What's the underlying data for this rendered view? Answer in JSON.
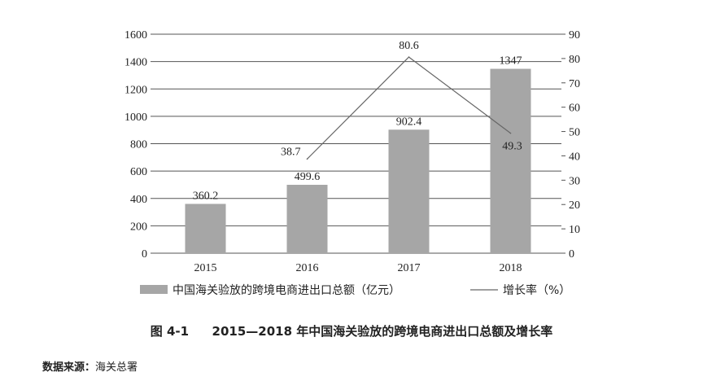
{
  "chart_data": {
    "type": "bar",
    "categories": [
      "2015",
      "2016",
      "2017",
      "2018"
    ],
    "series": [
      {
        "name": "中国海关验放的跨境电商进出口总额（亿元）",
        "type": "bar",
        "axis": "left",
        "values": [
          360.2,
          499.6,
          902.4,
          1347
        ],
        "labels": [
          "360.2",
          "499.6",
          "902.4",
          "1347"
        ],
        "color": "#a6a6a6"
      },
      {
        "name": "增长率（%）",
        "type": "line",
        "axis": "right",
        "values": [
          null,
          38.7,
          80.6,
          49.3
        ],
        "labels": [
          "",
          "38.7",
          "80.6",
          "49.3"
        ],
        "color": "#666666"
      }
    ],
    "y_left": {
      "min": 0,
      "max": 1600,
      "ticks": [
        "0",
        "200",
        "400",
        "600",
        "800",
        "1000",
        "1200",
        "1400",
        "1600"
      ]
    },
    "y_right": {
      "min": 0,
      "max": 90,
      "ticks": [
        "0",
        "10",
        "20",
        "30",
        "40",
        "50",
        "60",
        "70",
        "80",
        "90"
      ]
    },
    "grid": true,
    "legend_position": "bottom",
    "title": "2015—2018 年中国海关验放的跨境电商进出口总额及增长率"
  },
  "caption": {
    "number": "图 4-1",
    "title": "2015—2018 年中国海关验放的跨境电商进出口总额及增长率"
  },
  "source": {
    "label": "数据来源：",
    "text": "海关总署"
  }
}
